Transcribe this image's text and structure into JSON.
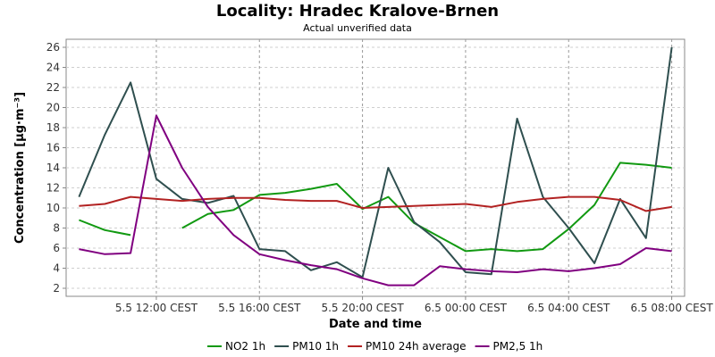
{
  "chart_data": {
    "type": "line",
    "title": "Locality: Hradec Kralove-Brnen",
    "subtitle": "Actual unverified data",
    "xlabel": "Date and time",
    "ylabel": "Concentration [µg·m⁻³]",
    "ylim": [
      1.2,
      26.8
    ],
    "yticks": [
      2,
      4,
      6,
      8,
      10,
      12,
      14,
      16,
      18,
      20,
      22,
      24,
      26
    ],
    "x_ticks": [
      {
        "x": 3,
        "label": "5.5 12:00 CEST"
      },
      {
        "x": 7,
        "label": "5.5 16:00 CEST"
      },
      {
        "x": 11,
        "label": "5.5 20:00 CEST"
      },
      {
        "x": 15,
        "label": "6.5 00:00 CEST"
      },
      {
        "x": 19,
        "label": "6.5 04:00 CEST"
      },
      {
        "x": 23,
        "label": "6.5 08:00 CEST"
      }
    ],
    "xlim": [
      -0.5,
      23.5
    ],
    "x": [
      0,
      1,
      2,
      3,
      4,
      5,
      6,
      7,
      8,
      9,
      10,
      11,
      12,
      13,
      14,
      15,
      16,
      17,
      18,
      19,
      20,
      21,
      22,
      23
    ],
    "grid": true,
    "legend_position": "bottom",
    "series": [
      {
        "name": "NO2 1h",
        "color": "#119911",
        "values": [
          8.8,
          7.8,
          7.3,
          null,
          8.0,
          9.4,
          9.8,
          11.3,
          11.5,
          11.9,
          12.4,
          9.9,
          11.1,
          8.5,
          7.1,
          5.7,
          5.9,
          5.7,
          5.9,
          7.9,
          10.3,
          14.5,
          14.3,
          14.0
        ]
      },
      {
        "name": "PM10 1h",
        "color": "#2f4f4f",
        "values": [
          11.1,
          17.3,
          22.5,
          12.9,
          10.9,
          10.5,
          11.2,
          5.9,
          5.7,
          3.8,
          4.6,
          3.1,
          14.0,
          8.6,
          6.6,
          3.6,
          3.4,
          18.9,
          11.1,
          8.0,
          4.5,
          10.9,
          7.0,
          26.0
        ]
      },
      {
        "name": "PM10 24h average",
        "color": "#b22222",
        "values": [
          10.2,
          10.4,
          11.1,
          10.9,
          10.7,
          10.9,
          11.0,
          11.0,
          10.8,
          10.7,
          10.7,
          10.0,
          10.1,
          10.2,
          10.3,
          10.4,
          10.1,
          10.6,
          10.9,
          11.1,
          11.1,
          10.8,
          9.7,
          10.1
        ]
      },
      {
        "name": "PM2,5 1h",
        "color": "#800080",
        "values": [
          5.9,
          5.4,
          5.5,
          19.2,
          14.0,
          10.1,
          7.3,
          5.4,
          4.8,
          4.3,
          3.9,
          3.0,
          2.3,
          2.3,
          4.2,
          3.9,
          3.7,
          3.6,
          3.9,
          3.7,
          4.0,
          4.4,
          6.0,
          5.7
        ]
      }
    ]
  }
}
